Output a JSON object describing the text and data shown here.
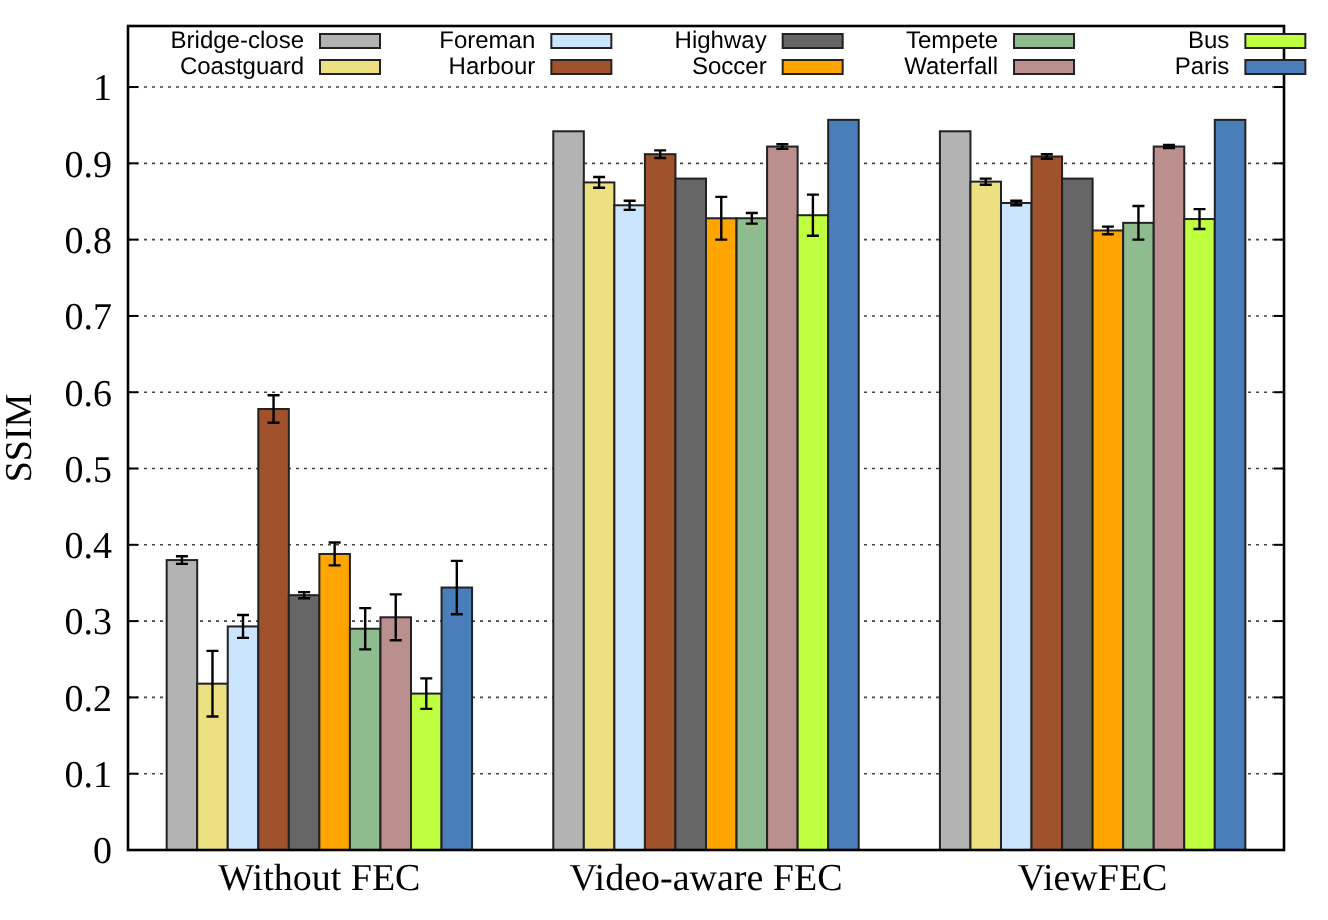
{
  "chart_data": {
    "type": "bar",
    "ylabel": "SSIM",
    "categories": [
      "Without FEC",
      "Video-aware FEC",
      "ViewFEC"
    ],
    "ylim": [
      0,
      1.08
    ],
    "yticks": [
      0,
      0.1,
      0.2,
      0.3,
      0.4,
      0.5,
      0.6,
      0.7,
      0.8,
      0.9,
      1
    ],
    "grid": "y",
    "legend": "top",
    "series": [
      {
        "name": "Bridge-close",
        "color": "#b3b3b3",
        "values": [
          0.38,
          0.942,
          0.942
        ],
        "errors": [
          0.005,
          null,
          null
        ]
      },
      {
        "name": "Coastguard",
        "color": "#ede080",
        "values": [
          0.218,
          0.875,
          0.876
        ],
        "errors": [
          0.043,
          0.007,
          0.004
        ]
      },
      {
        "name": "Foreman",
        "color": "#cce5ff",
        "values": [
          0.293,
          0.845,
          0.848
        ],
        "errors": [
          0.015,
          0.006,
          0.003
        ]
      },
      {
        "name": "Harbour",
        "color": "#a0522d",
        "values": [
          0.578,
          0.912,
          0.909
        ],
        "errors": [
          0.018,
          0.005,
          0.003
        ]
      },
      {
        "name": "Highway",
        "color": "#666666",
        "values": [
          0.334,
          0.88,
          0.88
        ],
        "errors": [
          0.004,
          null,
          null
        ]
      },
      {
        "name": "Soccer",
        "color": "#ffa500",
        "values": [
          0.388,
          0.828,
          0.812
        ],
        "errors": [
          0.015,
          0.028,
          0.005
        ]
      },
      {
        "name": "Tempete",
        "color": "#8fbc8f",
        "values": [
          0.29,
          0.828,
          0.822
        ],
        "errors": [
          0.027,
          0.007,
          0.022
        ]
      },
      {
        "name": "Waterfall",
        "color": "#bc8f8f",
        "values": [
          0.305,
          0.922,
          0.922
        ],
        "errors": [
          0.03,
          0.003,
          0.002
        ]
      },
      {
        "name": "Bus",
        "color": "#c0ff40",
        "values": [
          0.205,
          0.832,
          0.827
        ],
        "errors": [
          0.02,
          0.027,
          0.013
        ]
      },
      {
        "name": "Paris",
        "color": "#4a7ebb",
        "values": [
          0.344,
          0.957,
          0.957
        ],
        "errors": [
          0.035,
          null,
          null
        ]
      }
    ]
  }
}
